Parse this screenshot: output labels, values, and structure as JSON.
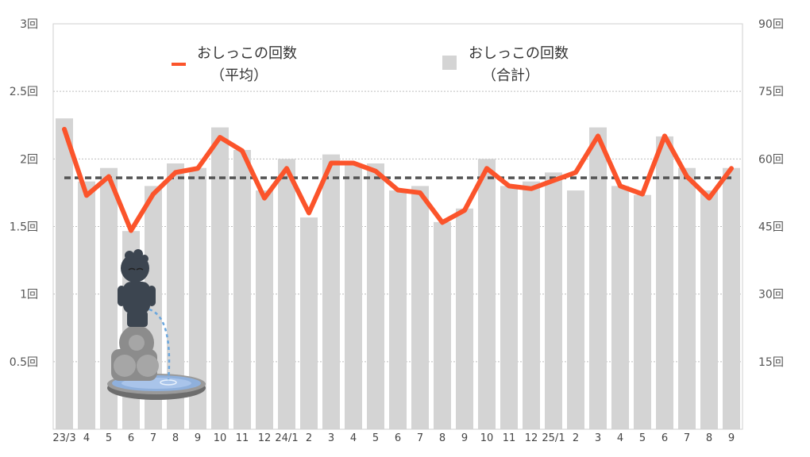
{
  "chart_data": {
    "type": "bar",
    "categories": [
      "23/3",
      "4",
      "5",
      "6",
      "7",
      "8",
      "9",
      "10",
      "11",
      "12",
      "24/1",
      "2",
      "3",
      "4",
      "5",
      "6",
      "7",
      "8",
      "9",
      "10",
      "11",
      "12",
      "25/1",
      "2",
      "3",
      "4",
      "5",
      "6",
      "7",
      "8",
      "9"
    ],
    "series": [
      {
        "name": "おしっこの回数（合計）",
        "type": "bar",
        "axis": "right",
        "values": [
          69,
          55,
          58,
          44,
          54,
          59,
          58,
          67,
          62,
          53,
          60,
          47,
          61,
          59,
          59,
          53,
          54,
          46,
          49,
          60,
          54,
          55,
          57,
          53,
          67,
          54,
          52,
          65,
          58,
          53,
          58
        ]
      },
      {
        "name": "おしっこの回数（平均）",
        "type": "line",
        "axis": "left",
        "values": [
          2.22,
          1.73,
          1.87,
          1.47,
          1.74,
          1.9,
          1.93,
          2.16,
          2.06,
          1.71,
          1.93,
          1.6,
          1.97,
          1.97,
          1.91,
          1.77,
          1.75,
          1.53,
          1.62,
          1.93,
          1.8,
          1.78,
          1.84,
          1.9,
          2.17,
          1.8,
          1.74,
          2.17,
          1.87,
          1.71,
          1.93
        ]
      },
      {
        "type": "reference-line",
        "axis": "left",
        "value": 1.86
      }
    ],
    "y_left": {
      "min": 0,
      "max": 3,
      "ticks": [
        "0.5回",
        "1回",
        "1.5回",
        "2回",
        "2.5回",
        "3回"
      ]
    },
    "y_right": {
      "min": 0,
      "max": 90,
      "ticks": [
        "15回",
        "30回",
        "45回",
        "60回",
        "75回",
        "90回"
      ]
    },
    "legend": {
      "line": {
        "label_1": "おしっこの回数",
        "label_2": "（平均）"
      },
      "bar": {
        "label_1": "おしっこの回数",
        "label_2": "（合計）"
      },
      "position": "top"
    },
    "grid": true,
    "colors": {
      "bar": "#d4d4d4",
      "line": "#fb542b",
      "reference": "#555555",
      "grid": "#bdbdbd"
    }
  },
  "illustration": {
    "name": "manneken-pis-fountain-illustration"
  }
}
